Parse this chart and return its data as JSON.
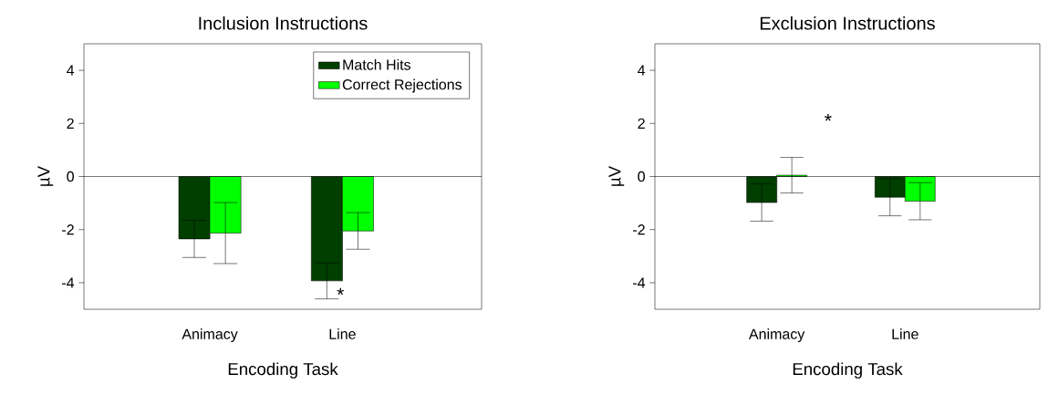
{
  "chart_data": [
    {
      "type": "bar",
      "title": "Inclusion Instructions",
      "xlabel": "Encoding Task",
      "ylabel": "µV",
      "categories": [
        "Animacy",
        "Line"
      ],
      "series": [
        {
          "name": "Match Hits",
          "color": "#003f00",
          "values": [
            -2.35,
            -3.93
          ],
          "errors": [
            0.7,
            0.68
          ]
        },
        {
          "name": "Correct Rejections",
          "color": "#00ff00",
          "values": [
            -2.13,
            -2.05
          ],
          "errors": [
            1.15,
            0.69
          ]
        }
      ],
      "ylim": [
        -5,
        5
      ],
      "yticks": [
        -4,
        -2,
        0,
        2,
        4
      ],
      "ref_lines": [
        {
          "axis": "y",
          "value": 0
        }
      ],
      "annotations": [
        "*"
      ],
      "legend": "top right",
      "grid": false
    },
    {
      "type": "bar",
      "title": "Exclusion Instructions",
      "xlabel": "Encoding Task",
      "ylabel": "µV",
      "categories": [
        "Animacy",
        "Line"
      ],
      "series": [
        {
          "color": "#003f00",
          "values": [
            -0.98,
            -0.78
          ],
          "errors": [
            0.7,
            0.7
          ]
        },
        {
          "color": "#00ff00",
          "values": [
            0.05,
            -0.93
          ],
          "errors": [
            0.67,
            0.7
          ]
        }
      ],
      "ylim": [
        -5,
        5
      ],
      "yticks": [
        -4,
        -2,
        0,
        2,
        4
      ],
      "ref_lines": [
        {
          "axis": "y",
          "value": 0
        }
      ],
      "annotations": [
        "*"
      ],
      "legend": false,
      "grid": false
    }
  ]
}
